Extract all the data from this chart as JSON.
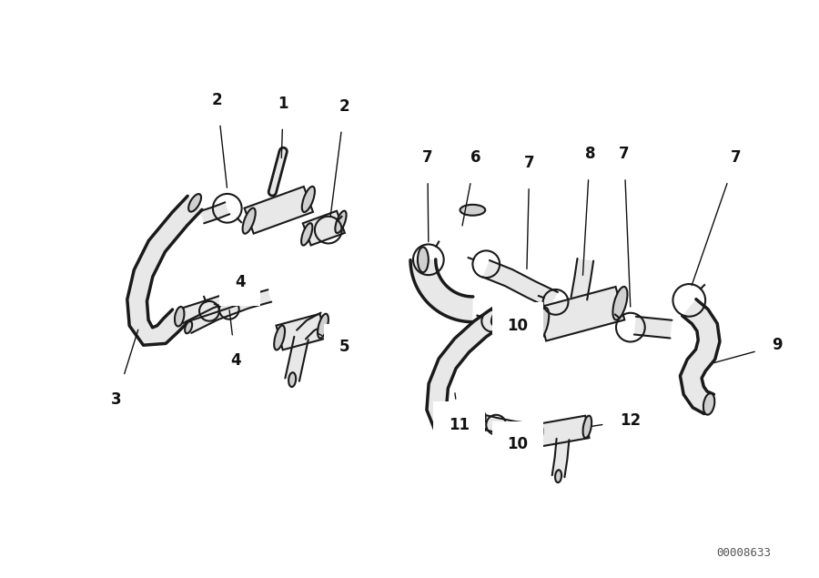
{
  "bg_color": "#ffffff",
  "line_color": "#1a1a1a",
  "label_color": "#111111",
  "diagram_id": "00008633",
  "fig_width": 9.0,
  "fig_height": 6.35,
  "dpi": 100
}
